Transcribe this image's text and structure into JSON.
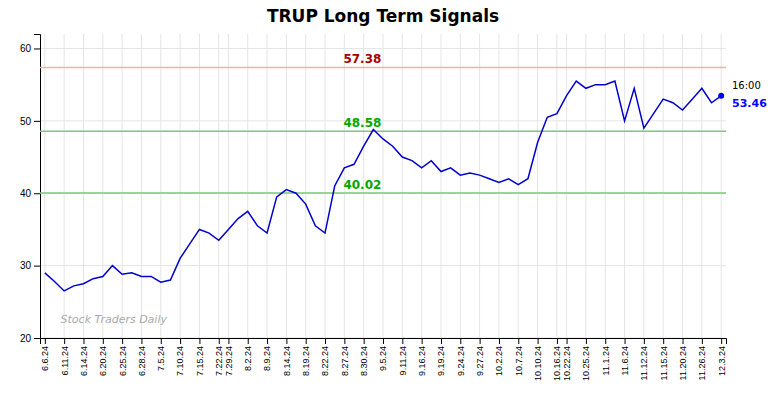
{
  "chart_data": {
    "type": "line",
    "title": "TRUP Long Term Signals",
    "categories": [
      "6.6.24",
      null,
      "6.11.24",
      null,
      "6.14.24",
      null,
      "6.20.24",
      null,
      "6.25.24",
      null,
      "6.28.24",
      null,
      "7.5.24",
      null,
      "7.10.24",
      null,
      "7.15.24",
      null,
      "7.22.24",
      "7.29.24",
      null,
      "8.2.24",
      null,
      "8.9.24",
      null,
      "8.14.24",
      null,
      "8.19.24",
      null,
      "8.22.24",
      null,
      "8.27.24",
      null,
      "8.30.24",
      null,
      "9.5.24",
      null,
      "9.11.24",
      null,
      "9.16.24",
      null,
      "9.19.24",
      null,
      "9.24.24",
      null,
      "9.27.24",
      null,
      "10.2.24",
      null,
      "10.7.24",
      null,
      "10.10.24",
      null,
      "10.16.24",
      "10.22.24",
      null,
      "10.25.24",
      null,
      "11.1.24",
      null,
      "11.6.24",
      null,
      "11.12.24",
      null,
      "11.15.24",
      null,
      "11.20.24",
      null,
      "11.26.24",
      null,
      "12.3.24"
    ],
    "values": [
      29.0,
      27.8,
      26.5,
      27.2,
      27.5,
      28.2,
      28.5,
      30.0,
      28.8,
      29.0,
      28.5,
      28.5,
      27.7,
      28.0,
      31.0,
      33.0,
      35.0,
      34.5,
      33.5,
      35.0,
      36.5,
      37.5,
      35.5,
      34.5,
      39.5,
      40.5,
      40.0,
      38.5,
      35.5,
      34.5,
      41.0,
      43.5,
      44.0,
      46.5,
      48.8,
      47.5,
      46.5,
      45.0,
      44.5,
      43.5,
      44.5,
      43.0,
      43.5,
      42.5,
      42.8,
      42.5,
      42.0,
      41.5,
      42.0,
      41.2,
      42.0,
      47.0,
      50.5,
      51.0,
      53.5,
      55.5,
      54.5,
      55.0,
      55.0,
      55.5,
      50.0,
      54.5,
      49.0,
      51.0,
      53.0,
      52.5,
      51.5,
      53.0,
      54.5,
      52.5,
      53.46
    ],
    "color": "#0000cc",
    "ylim": [
      20,
      62
    ],
    "yticks": [
      20,
      30,
      40,
      50,
      60
    ],
    "grid": true,
    "reference_lines": [
      {
        "value": 57.38,
        "label": "57.38",
        "color": "#ffaaaa"
      },
      {
        "value": 48.58,
        "label": "48.58",
        "color": "#77cc77"
      },
      {
        "value": 40.02,
        "label": "40.02",
        "color": "#77cc77"
      }
    ],
    "end_point": {
      "value": 53.46,
      "label": "16:00",
      "color": "#0000ff"
    },
    "annotations": [
      {
        "text": "Stock Traders Daily"
      }
    ]
  }
}
